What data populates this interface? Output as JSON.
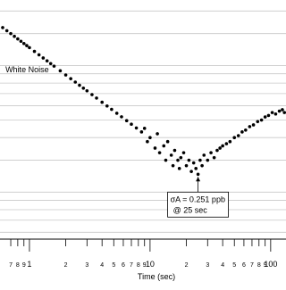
{
  "chart_data": {
    "type": "scatter",
    "x_label": "Time (sec)",
    "xscale": "log",
    "yscale": "log",
    "xlim": [
      0.57,
      134
    ],
    "ylim": [
      0.11,
      2.3
    ],
    "xticks": [
      {
        "value": 0.7,
        "label": "7"
      },
      {
        "value": 0.8,
        "label": "8"
      },
      {
        "value": 0.9,
        "label": "9"
      },
      1,
      {
        "value": 2,
        "label": "2"
      },
      {
        "value": 3,
        "label": "3"
      },
      {
        "value": 4,
        "label": "4"
      },
      {
        "value": 5,
        "label": "5"
      },
      {
        "value": 6,
        "label": "6"
      },
      {
        "value": 7,
        "label": "7"
      },
      {
        "value": 8,
        "label": "8"
      },
      {
        "value": 9,
        "label": "9"
      },
      10,
      {
        "value": 20,
        "label": "2"
      },
      {
        "value": 30,
        "label": "3"
      },
      {
        "value": 40,
        "label": "4"
      },
      {
        "value": 50,
        "label": "5"
      },
      {
        "value": 60,
        "label": "6"
      },
      {
        "value": 70,
        "label": "7"
      },
      {
        "value": 80,
        "label": "8"
      },
      {
        "value": 90,
        "label": "9"
      },
      100
    ],
    "ygrid": [
      0.12,
      0.14,
      0.16,
      0.18,
      0.2,
      0.3,
      0.4,
      0.5,
      0.6,
      0.7,
      0.8,
      0.9,
      1,
      1.5,
      2
    ],
    "color": "#000000",
    "x": [
      0.6,
      0.65,
      0.7,
      0.75,
      0.8,
      0.85,
      0.9,
      0.95,
      1,
      1.1,
      1.2,
      1.3,
      1.4,
      1.5,
      1.6,
      1.8,
      2,
      2.2,
      2.4,
      2.6,
      2.8,
      3,
      3.3,
      3.6,
      4,
      4.4,
      4.8,
      5.3,
      5.8,
      6.4,
      7,
      7.7,
      8.5,
      9,
      9.5,
      10,
      11,
      11.5,
      12,
      13,
      13.5,
      14,
      15,
      15.5,
      16,
      17,
      17.5,
      18,
      19,
      20,
      21,
      22,
      23,
      24,
      25,
      26,
      27,
      28,
      30,
      32,
      34,
      36,
      38,
      40,
      43,
      46,
      50,
      54,
      58,
      62,
      67,
      72,
      78,
      84,
      90,
      96,
      103,
      110,
      118,
      125,
      130
    ],
    "values": [
      1.62,
      1.557,
      1.5,
      1.449,
      1.403,
      1.361,
      1.323,
      1.288,
      1.255,
      1.197,
      1.146,
      1.101,
      1.061,
      1.025,
      0.992,
      0.935,
      0.887,
      0.846,
      0.81,
      0.778,
      0.75,
      0.725,
      0.691,
      0.661,
      0.627,
      0.598,
      0.573,
      0.545,
      0.521,
      0.496,
      0.474,
      0.452,
      0.43,
      0.45,
      0.38,
      0.4,
      0.35,
      0.42,
      0.33,
      0.36,
      0.3,
      0.38,
      0.32,
      0.28,
      0.34,
      0.3,
      0.27,
      0.31,
      0.33,
      0.28,
      0.3,
      0.26,
      0.29,
      0.27,
      0.251,
      0.3,
      0.28,
      0.32,
      0.3,
      0.33,
      0.31,
      0.34,
      0.35,
      0.36,
      0.37,
      0.38,
      0.4,
      0.41,
      0.43,
      0.44,
      0.46,
      0.47,
      0.49,
      0.5,
      0.52,
      0.53,
      0.55,
      0.54,
      0.56,
      0.57,
      0.55
    ],
    "annotations": [
      {
        "text": "White Noise",
        "x": 1.3,
        "y": 0.95
      },
      {
        "text": "σA = 0.251 ppb",
        "text2": "@ 25 sec",
        "x": 25,
        "y": 0.251
      }
    ]
  }
}
